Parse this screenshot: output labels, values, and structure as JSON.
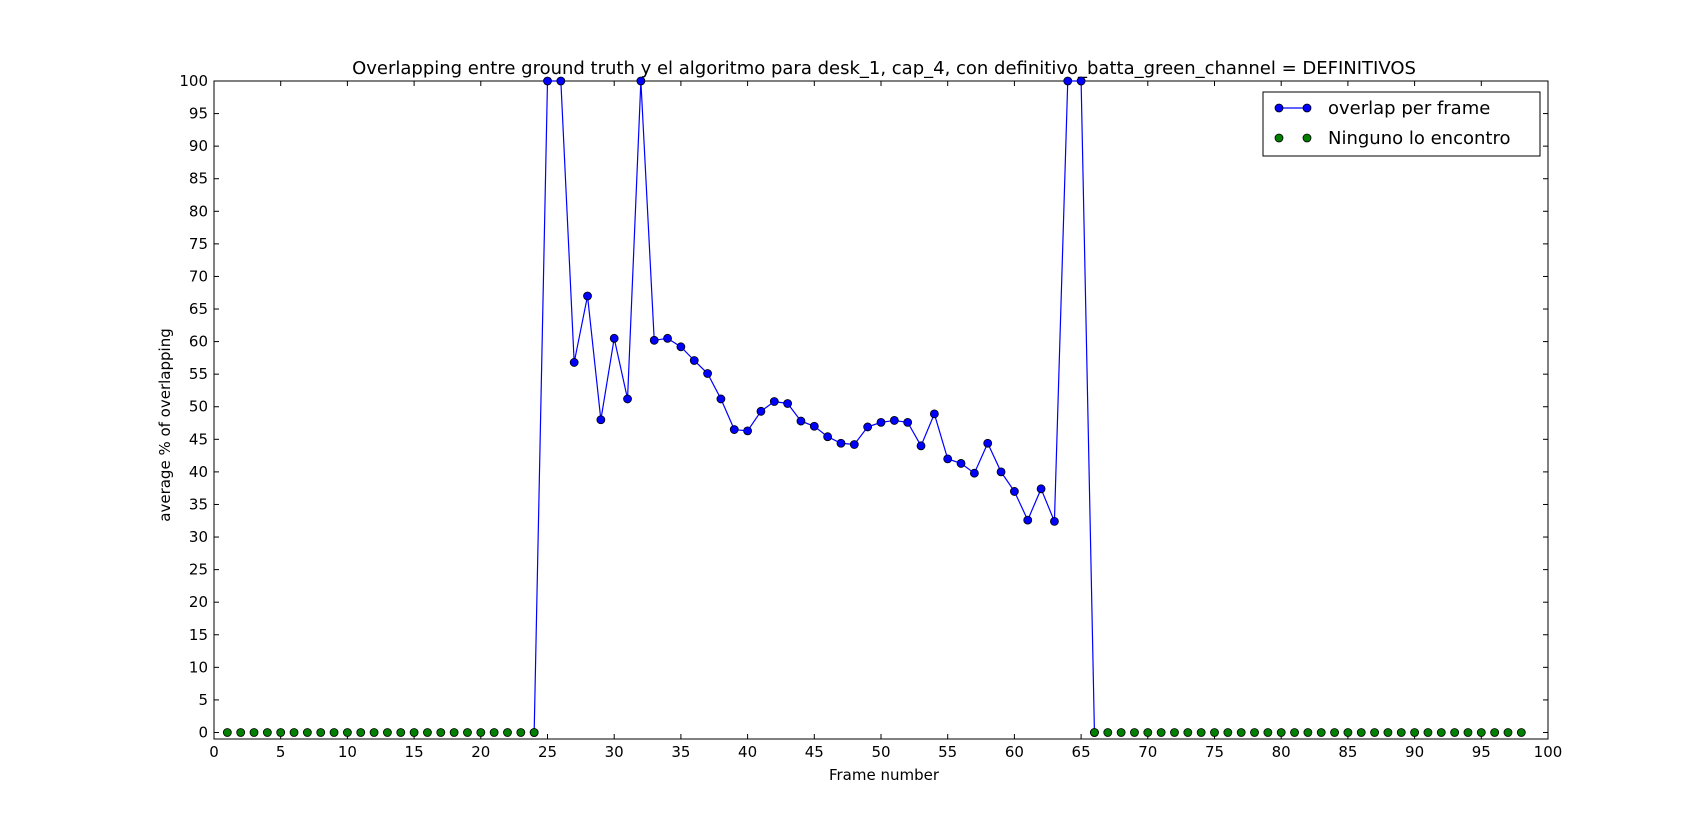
{
  "chart_data": {
    "type": "line",
    "title": "Overlapping entre ground truth y el algoritmo para desk_1, cap_4, con definitivo_batta_green_channel = DEFINITIVOS",
    "xlabel": "Frame number",
    "ylabel": "average % of overlapping",
    "xlim": [
      0,
      100
    ],
    "ylim": [
      -1,
      100
    ],
    "xticks": [
      0,
      5,
      10,
      15,
      20,
      25,
      30,
      35,
      40,
      45,
      50,
      55,
      60,
      65,
      70,
      75,
      80,
      85,
      90,
      95,
      100
    ],
    "yticks": [
      0,
      5,
      10,
      15,
      20,
      25,
      30,
      35,
      40,
      45,
      50,
      55,
      60,
      65,
      70,
      75,
      80,
      85,
      90,
      95,
      100
    ],
    "grid": false,
    "legend_position": "top-right",
    "series": [
      {
        "name": "overlap per frame",
        "color": "#0000ff",
        "style": "line-marker",
        "x": [
          24,
          25,
          26,
          27,
          28,
          29,
          30,
          31,
          32,
          33,
          34,
          35,
          36,
          37,
          38,
          39,
          40,
          41,
          42,
          43,
          44,
          45,
          46,
          47,
          48,
          49,
          50,
          51,
          52,
          53,
          54,
          55,
          56,
          57,
          58,
          59,
          60,
          61,
          62,
          63,
          64,
          65,
          66
        ],
        "y": [
          0,
          100,
          100,
          56.8,
          67,
          48,
          60.5,
          51.2,
          100,
          60.2,
          60.5,
          59.2,
          57.1,
          55.1,
          51.2,
          46.5,
          46.3,
          49.3,
          50.8,
          50.5,
          47.8,
          47,
          45.4,
          44.4,
          44.2,
          46.9,
          47.6,
          47.9,
          47.6,
          44,
          48.9,
          42,
          41.3,
          39.8,
          44.4,
          40,
          37,
          32.6,
          37.4,
          32.4,
          100,
          100,
          0
        ]
      },
      {
        "name": "Ninguno lo encontro",
        "color": "#008000",
        "style": "marker",
        "x": [
          1,
          2,
          3,
          4,
          5,
          6,
          7,
          8,
          9,
          10,
          11,
          12,
          13,
          14,
          15,
          16,
          17,
          18,
          19,
          20,
          21,
          22,
          23,
          24,
          66,
          67,
          68,
          69,
          70,
          71,
          72,
          73,
          74,
          75,
          76,
          77,
          78,
          79,
          80,
          81,
          82,
          83,
          84,
          85,
          86,
          87,
          88,
          89,
          90,
          91,
          92,
          93,
          94,
          95,
          96,
          97,
          98
        ],
        "y": [
          0,
          0,
          0,
          0,
          0,
          0,
          0,
          0,
          0,
          0,
          0,
          0,
          0,
          0,
          0,
          0,
          0,
          0,
          0,
          0,
          0,
          0,
          0,
          0,
          0,
          0,
          0,
          0,
          0,
          0,
          0,
          0,
          0,
          0,
          0,
          0,
          0,
          0,
          0,
          0,
          0,
          0,
          0,
          0,
          0,
          0,
          0,
          0,
          0,
          0,
          0,
          0,
          0,
          0,
          0,
          0,
          0
        ]
      }
    ]
  }
}
